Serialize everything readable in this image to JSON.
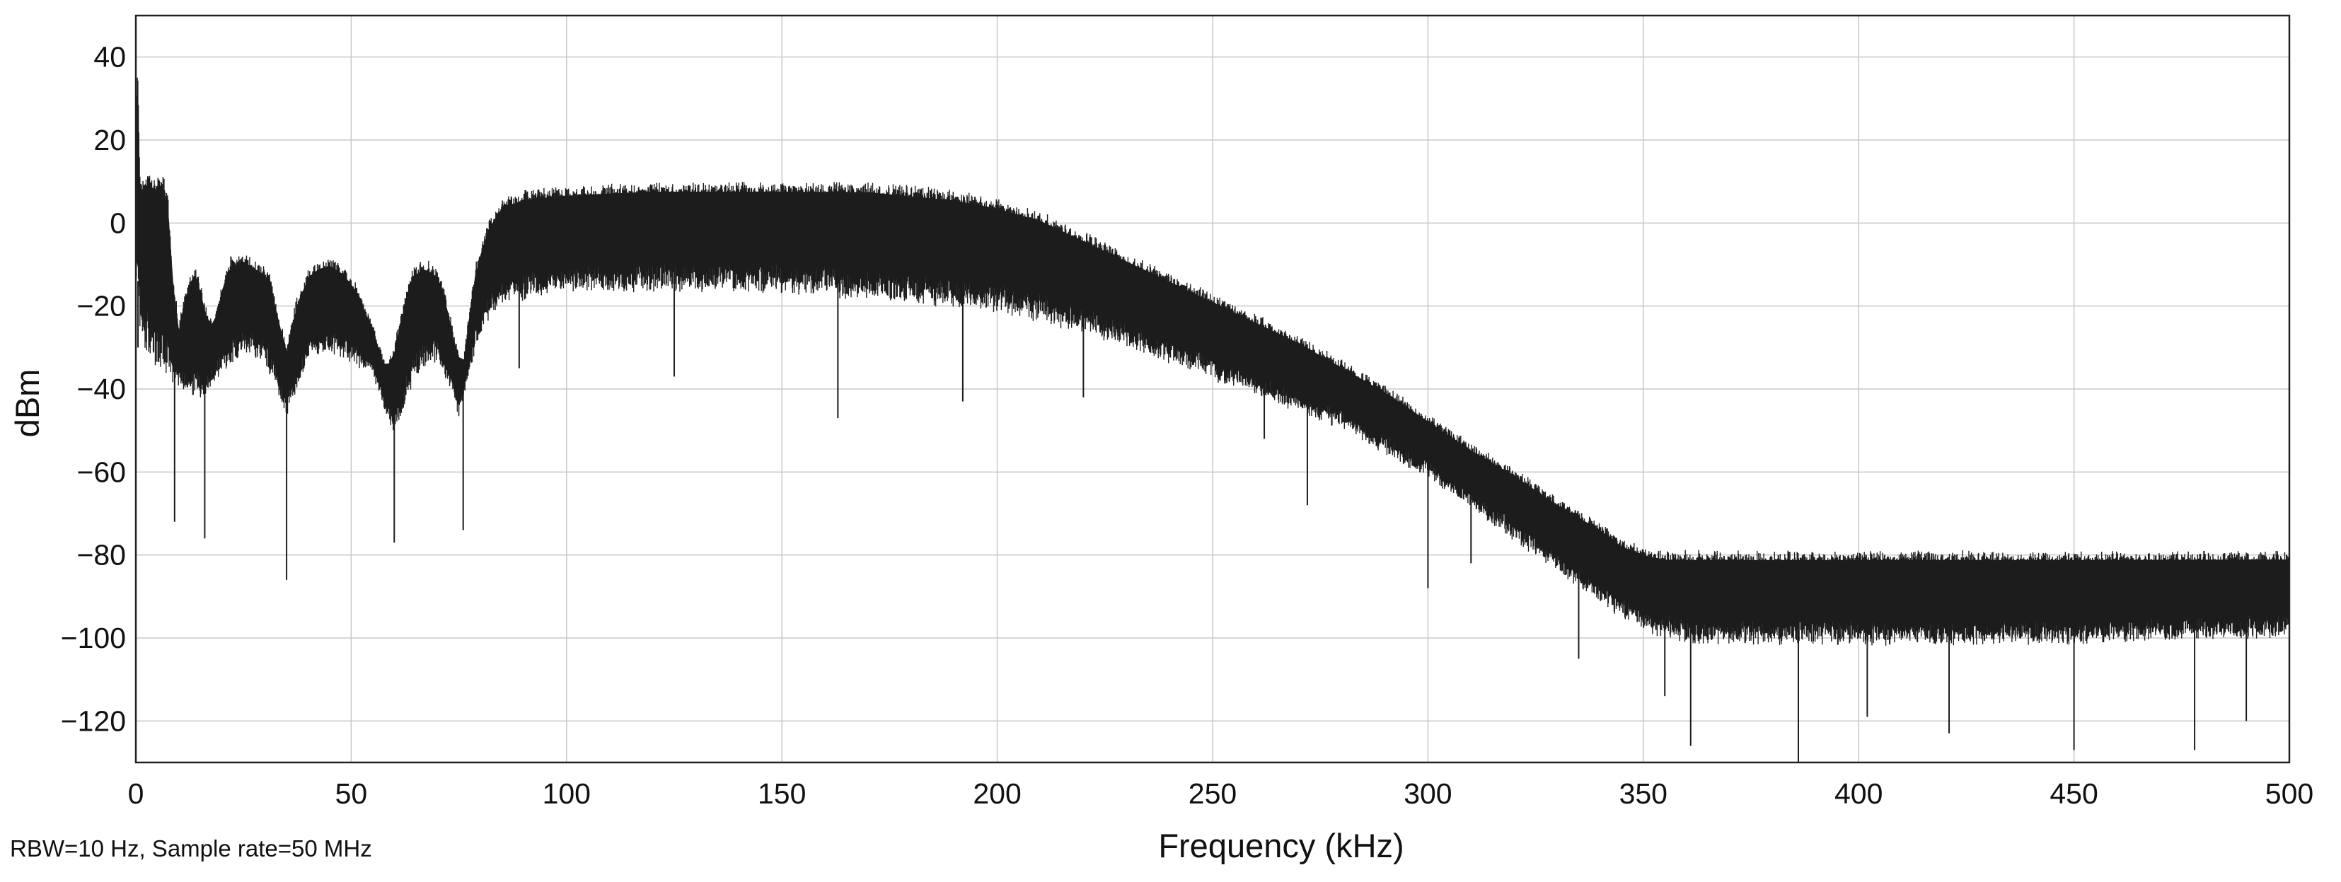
{
  "chart_data": {
    "type": "line",
    "title": "",
    "xlabel": "Frequency (kHz)",
    "ylabel": "dBm",
    "xlim": [
      0,
      500
    ],
    "ylim": [
      -130,
      50
    ],
    "xticks": [
      0,
      50,
      100,
      150,
      200,
      250,
      300,
      350,
      400,
      450,
      500
    ],
    "yticks": [
      40,
      20,
      0,
      -20,
      -40,
      -60,
      -80,
      -100,
      -120
    ],
    "ytick_labels": [
      "40",
      "20",
      "0",
      "−20",
      "−40",
      "−60",
      "−80",
      "−100",
      "−120"
    ],
    "grid": true,
    "legend": "none",
    "color": "#1c1c1c",
    "annotation": "RBW=10 Hz, Sample rate=50 MHz",
    "series": [
      {
        "upper_envelope": {
          "x": [
            0,
            0.3,
            1,
            3,
            5,
            6,
            7.5,
            8.5,
            10,
            12,
            14,
            16,
            18,
            20,
            22,
            25,
            28,
            31,
            33,
            35,
            37,
            40,
            42,
            45,
            48,
            51,
            55,
            58,
            60,
            62,
            64,
            66,
            68,
            70,
            72,
            74,
            76,
            77,
            79,
            82,
            85,
            90,
            100,
            120,
            150,
            170,
            190,
            200,
            210,
            220,
            230,
            240,
            250,
            260,
            270,
            280,
            290,
            300,
            310,
            320,
            330,
            340,
            345,
            350,
            355,
            360,
            380,
            400,
            420,
            440,
            460,
            480,
            500
          ],
          "y": [
            -5,
            43,
            10,
            12,
            10,
            13,
            6,
            -12,
            -25,
            -14,
            -10,
            -20,
            -25,
            -15,
            -9,
            -8,
            -10,
            -12,
            -22,
            -30,
            -20,
            -12,
            -10,
            -9,
            -11,
            -15,
            -25,
            -35,
            -30,
            -20,
            -12,
            -10,
            -10,
            -12,
            -18,
            -28,
            -35,
            -25,
            -10,
            0,
            5,
            7,
            8,
            9,
            9,
            9,
            7,
            5,
            2,
            -3,
            -8,
            -13,
            -18,
            -23,
            -28,
            -34,
            -40,
            -47,
            -54,
            -60,
            -67,
            -73,
            -77,
            -79,
            -80,
            -80,
            -80,
            -80,
            -80,
            -80,
            -80,
            -80,
            -80
          ]
        },
        "lower_envelope": {
          "x": [
            0,
            1,
            3,
            5,
            7,
            10,
            15,
            20,
            25,
            30,
            35,
            40,
            45,
            50,
            55,
            60,
            65,
            70,
            75,
            80,
            85,
            100,
            150,
            200,
            220,
            240,
            260,
            280,
            300,
            320,
            340,
            350,
            360,
            400,
            450,
            500
          ],
          "y": [
            -10,
            -28,
            -30,
            -35,
            -35,
            -38,
            -42,
            -35,
            -30,
            -32,
            -45,
            -32,
            -30,
            -32,
            -35,
            -50,
            -35,
            -32,
            -45,
            -25,
            -18,
            -15,
            -15,
            -20,
            -25,
            -32,
            -40,
            -48,
            -60,
            -75,
            -90,
            -97,
            -100,
            -100,
            -100,
            -98
          ]
        },
        "dips": [
          {
            "x": 0.5,
            "y": -30
          },
          {
            "x": 9,
            "y": -72
          },
          {
            "x": 16,
            "y": -76
          },
          {
            "x": 35,
            "y": -86
          },
          {
            "x": 60,
            "y": -77
          },
          {
            "x": 76,
            "y": -74
          },
          {
            "x": 89,
            "y": -35
          },
          {
            "x": 125,
            "y": -37
          },
          {
            "x": 163,
            "y": -47
          },
          {
            "x": 192,
            "y": -43
          },
          {
            "x": 220,
            "y": -42
          },
          {
            "x": 262,
            "y": -52
          },
          {
            "x": 272,
            "y": -68
          },
          {
            "x": 300,
            "y": -88
          },
          {
            "x": 310,
            "y": -82
          },
          {
            "x": 335,
            "y": -105
          },
          {
            "x": 355,
            "y": -114
          },
          {
            "x": 361,
            "y": -126
          },
          {
            "x": 386,
            "y": -130
          },
          {
            "x": 402,
            "y": -119
          },
          {
            "x": 421,
            "y": -123
          },
          {
            "x": 450,
            "y": -127
          },
          {
            "x": 478,
            "y": -127
          },
          {
            "x": 490,
            "y": -120
          }
        ]
      }
    ]
  }
}
